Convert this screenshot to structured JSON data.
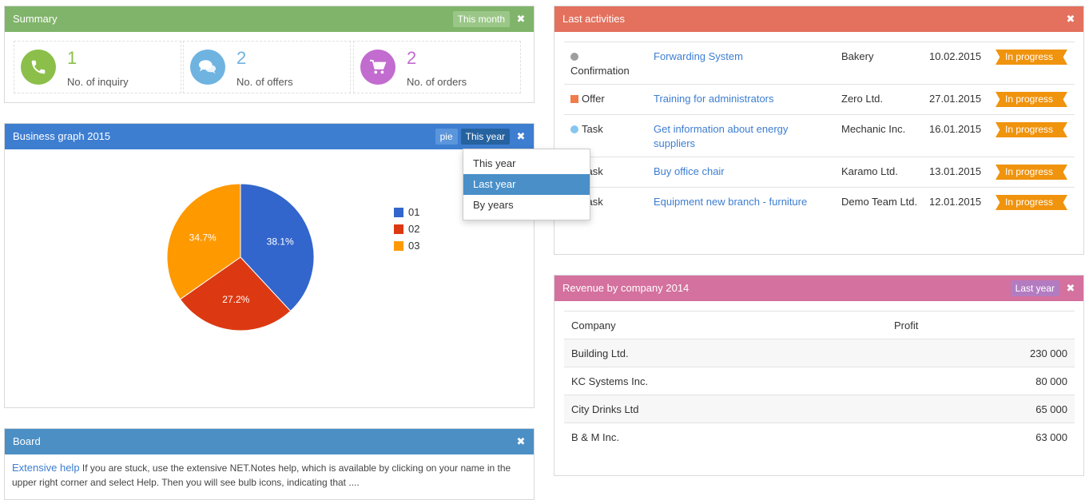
{
  "summary": {
    "title": "Summary",
    "period_button": "This month",
    "close": "✖",
    "stats": [
      {
        "number": "1",
        "label": "No. of inquiry",
        "color": "#8bbf4a",
        "icon": "phone-icon"
      },
      {
        "number": "2",
        "label": "No. of offers",
        "color": "#6fb3e0",
        "icon": "chat-bubbles-icon"
      },
      {
        "number": "2",
        "label": "No. of orders",
        "color": "#c26ccf",
        "icon": "shopping-cart-icon"
      }
    ]
  },
  "graph": {
    "title": "Business graph 2015",
    "type_button": "pie",
    "period_button": "This year",
    "close": "✖",
    "dropdown": [
      "This year",
      "Last year",
      "By years"
    ],
    "dropdown_active": "Last year",
    "chart_data": {
      "type": "pie",
      "categories": [
        "01",
        "02",
        "03"
      ],
      "values": [
        38.1,
        27.2,
        34.7
      ],
      "labels": [
        "38.1%",
        "27.2%",
        "34.7%"
      ],
      "colors": [
        "#3366cc",
        "#dc3912",
        "#ff9900"
      ],
      "legend_position": "right"
    }
  },
  "board": {
    "title": "Board",
    "close": "✖",
    "link": "Extensive help",
    "text": " If you are stuck, use the extensive NET.Notes help, which is available by clicking on your name in the upper right corner and select Help. Then you will see bulb icons, indicating that ...."
  },
  "activities": {
    "title": "Last activities",
    "close": "✖",
    "rows": [
      {
        "type": "Confirmation",
        "marker": "dot",
        "marker_color": "#9e9e9e",
        "subject": "Forwarding System",
        "company": "Bakery",
        "date": "10.02.2015",
        "status": "In progress"
      },
      {
        "type": "Offer",
        "marker": "square",
        "marker_color": "#f07b4b",
        "subject": "Training for administrators",
        "company": "Zero Ltd.",
        "date": "27.01.2015",
        "status": "In progress"
      },
      {
        "type": "Task",
        "marker": "dot",
        "marker_color": "#86c6f0",
        "subject": "Get information about energy suppliers",
        "company": "Mechanic Inc.",
        "date": "16.01.2015",
        "status": "In progress"
      },
      {
        "type": "Task",
        "marker": "none",
        "marker_color": "",
        "subject": "Buy office chair",
        "company": "Karamo Ltd.",
        "date": "13.01.2015",
        "status": "In progress"
      },
      {
        "type": "Task",
        "marker": "none",
        "marker_color": "",
        "subject": "Equipment new branch - furniture",
        "company": "Demo Team Ltd.",
        "date": "12.01.2015",
        "status": "In progress"
      }
    ]
  },
  "revenue": {
    "title": "Revenue by company 2014",
    "period_button": "Last year",
    "close": "✖",
    "columns": [
      "Company",
      "Profit"
    ],
    "rows": [
      {
        "company": "Building Ltd.",
        "profit": "230 000"
      },
      {
        "company": "KC Systems Inc.",
        "profit": "80 000"
      },
      {
        "company": "City Drinks Ltd",
        "profit": "65 000"
      },
      {
        "company": "B & M Inc.",
        "profit": "63 000"
      }
    ]
  }
}
